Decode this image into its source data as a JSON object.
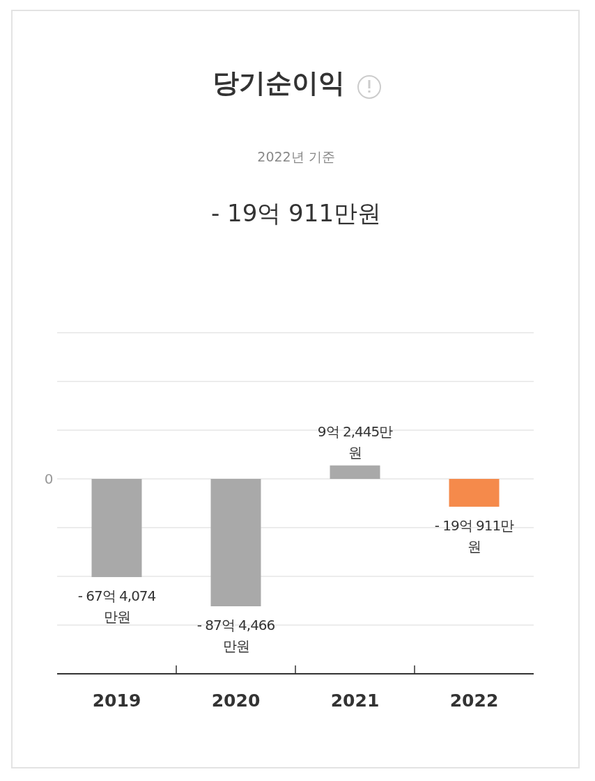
{
  "chart_data": {
    "type": "bar",
    "title": "당기순이익",
    "subtitle": "2022년 기준",
    "annotations": [
      "- 19억 911만원",
      "0"
    ],
    "categories": [
      "2019",
      "2020",
      "2021",
      "2022"
    ],
    "values": [
      -67.4074,
      -87.4466,
      9.2445,
      -19.0911
    ],
    "colors": [
      "#a9a9a9",
      "#a9a9a9",
      "#a9a9a9",
      "#f58a4b"
    ],
    "value_labels": [
      "- 67억 4,074만원",
      "- 87억 4,466만원",
      "9억 2,445만원",
      "- 19억 911만원"
    ],
    "grid": "y"
  }
}
